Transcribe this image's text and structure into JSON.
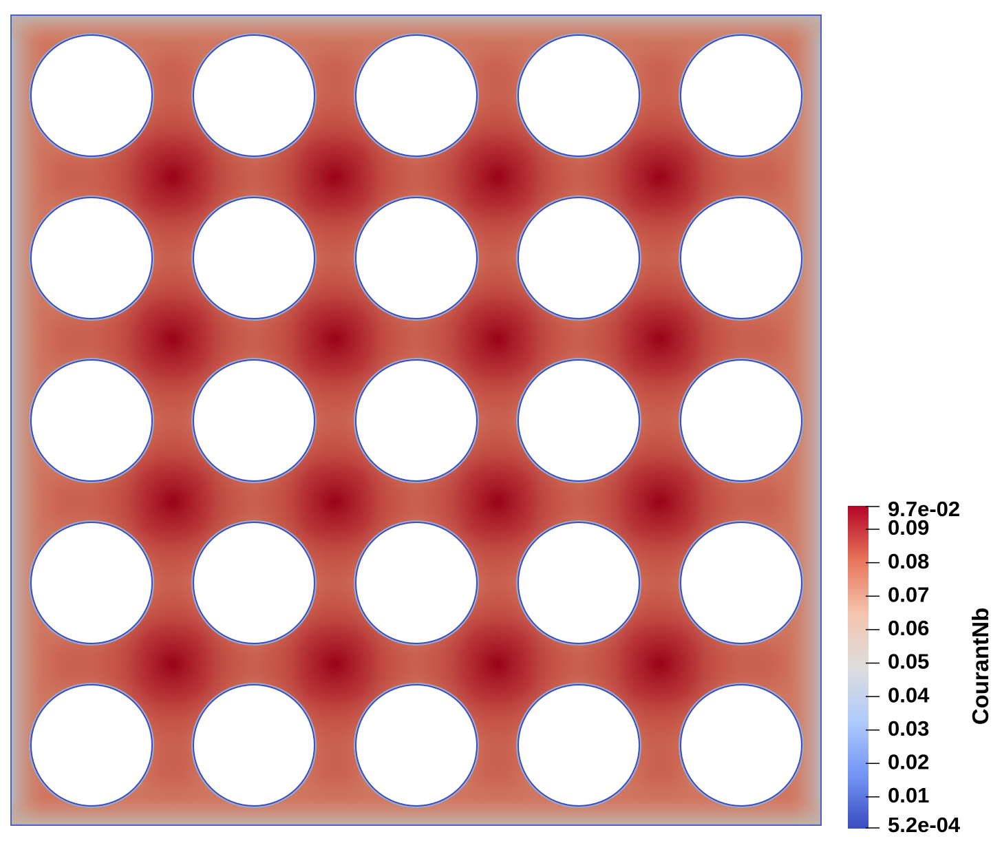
{
  "legend": {
    "title": "CourantNb",
    "max_label": "9.7e-02",
    "min_label": "5.2e-04",
    "max_value": 0.097,
    "min_value": 0.00052,
    "ticks": [
      {
        "value": 0.09,
        "label": "0.09"
      },
      {
        "value": 0.08,
        "label": "0.08"
      },
      {
        "value": 0.07,
        "label": "0.07"
      },
      {
        "value": 0.06,
        "label": "0.06"
      },
      {
        "value": 0.05,
        "label": "0.05"
      },
      {
        "value": 0.04,
        "label": "0.04"
      },
      {
        "value": 0.03,
        "label": "0.03"
      },
      {
        "value": 0.02,
        "label": "0.02"
      },
      {
        "value": 0.01,
        "label": "0.01"
      }
    ],
    "colormap": [
      "#3b4cc0",
      "#7396f5",
      "#b0cbfc",
      "#dddddd",
      "#f5c4ad",
      "#e7745b",
      "#b40426"
    ]
  },
  "field": {
    "grid_rows": 5,
    "grid_cols": 5,
    "low_color": "#3b4cc0",
    "edge_color": "#b9b4b0",
    "mid_color": "#d98a70",
    "high_color": "#9d0b1f",
    "obstacle_color": "#ffffff"
  }
}
